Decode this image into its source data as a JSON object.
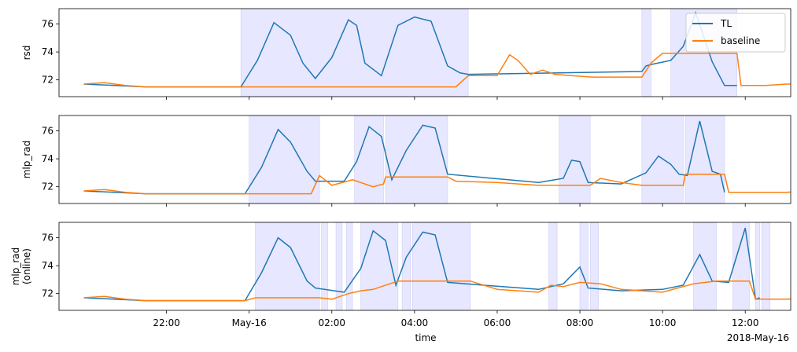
{
  "figure": {
    "xlabel": "time",
    "date_label": "2018-May-16",
    "x_ticks": [
      "22:00",
      "May-16",
      "02:00",
      "04:00",
      "06:00",
      "08:00",
      "10:00",
      "12:00"
    ]
  },
  "legend": {
    "entries": [
      {
        "label": "TL",
        "color": "#1f77b4"
      },
      {
        "label": "baseline",
        "color": "#ff7f0e"
      }
    ],
    "placement": "top-right"
  },
  "colors": {
    "tl": "#1f77b4",
    "baseline": "#ff7f0e",
    "span": "#e5e5ff"
  },
  "chart_data": [
    {
      "type": "line",
      "ylabel": [
        "rsd"
      ],
      "ylim": [
        70.8,
        77.1
      ],
      "yticks": [
        72,
        74,
        76
      ],
      "xlim_hours": [
        -2.6,
        15.1
      ],
      "spans": [
        [
          1.8,
          7.3
        ],
        [
          11.5,
          11.72
        ],
        [
          12.2,
          13.8
        ]
      ],
      "series": [
        {
          "name": "TL",
          "x": [
            -2.0,
            -0.5,
            1.8,
            2.2,
            2.6,
            3.0,
            3.3,
            3.6,
            4.0,
            4.4,
            4.6,
            4.8,
            5.2,
            5.6,
            6.0,
            6.4,
            6.8,
            7.1,
            7.3,
            11.5,
            11.6,
            11.72,
            12.2,
            12.5,
            12.8,
            13.2,
            13.5,
            13.8
          ],
          "y": [
            71.7,
            71.5,
            71.5,
            73.4,
            76.1,
            75.2,
            73.2,
            72.1,
            73.6,
            76.3,
            75.9,
            73.2,
            72.3,
            75.9,
            76.5,
            76.2,
            73.0,
            72.5,
            72.4,
            72.6,
            73.0,
            73.1,
            73.4,
            74.4,
            76.8,
            73.3,
            71.6,
            71.6
          ]
        },
        {
          "name": "baseline",
          "x": [
            -2.0,
            -1.5,
            -1.0,
            -0.5,
            0.0,
            1.0,
            2.0,
            3.0,
            4.0,
            5.0,
            6.0,
            7.0,
            7.3,
            7.6,
            8.0,
            8.3,
            8.5,
            8.8,
            9.1,
            9.4,
            9.8,
            10.3,
            11.0,
            11.5,
            11.72,
            12.0,
            12.2,
            13.8,
            13.9,
            14.5,
            15.0,
            16.0,
            17.0,
            18.0,
            19.0,
            20.0,
            21.0
          ],
          "y": [
            71.7,
            71.8,
            71.6,
            71.5,
            71.5,
            71.5,
            71.5,
            71.5,
            71.5,
            71.5,
            71.5,
            71.5,
            72.3,
            72.3,
            72.3,
            73.8,
            73.4,
            72.4,
            72.7,
            72.4,
            72.3,
            72.2,
            72.2,
            72.2,
            73.2,
            73.9,
            73.9,
            73.9,
            71.6,
            71.6,
            71.7,
            71.8,
            71.8,
            71.7,
            72.0,
            72.1,
            72.2
          ]
        }
      ]
    },
    {
      "type": "line",
      "ylabel": [
        "mlp_rad"
      ],
      "ylim": [
        70.8,
        77.1
      ],
      "yticks": [
        72,
        74,
        76
      ],
      "xlim_hours": [
        -2.6,
        15.1
      ],
      "spans": [
        [
          2.0,
          3.7
        ],
        [
          4.55,
          5.25
        ],
        [
          5.3,
          6.8
        ],
        [
          9.5,
          10.25
        ],
        [
          11.5,
          12.5
        ],
        [
          12.55,
          13.5
        ]
      ],
      "series": [
        {
          "name": "TL",
          "x": [
            -2.0,
            -0.5,
            1.9,
            2.3,
            2.7,
            3.0,
            3.4,
            3.6,
            4.3,
            4.6,
            4.9,
            5.2,
            5.45,
            5.8,
            6.2,
            6.5,
            6.8,
            9.0,
            9.6,
            9.8,
            10.0,
            10.2,
            11.0,
            11.6,
            11.9,
            12.2,
            12.4,
            12.6,
            12.9,
            13.2,
            13.4,
            13.5
          ],
          "y": [
            71.7,
            71.5,
            71.5,
            73.4,
            76.1,
            75.2,
            73.1,
            72.4,
            72.4,
            73.8,
            76.3,
            75.6,
            72.5,
            74.6,
            76.4,
            76.2,
            72.9,
            72.3,
            72.6,
            73.9,
            73.8,
            72.3,
            72.2,
            73.0,
            74.2,
            73.6,
            72.9,
            72.8,
            76.7,
            73.1,
            72.9,
            71.6
          ]
        },
        {
          "name": "baseline",
          "x": [
            -2.0,
            -1.5,
            -1.0,
            -0.5,
            0.5,
            1.8,
            2.0,
            3.0,
            3.5,
            3.7,
            4.0,
            4.5,
            5.0,
            5.25,
            5.3,
            6.0,
            6.8,
            7.0,
            8.0,
            9.0,
            9.5,
            10.25,
            10.5,
            11.0,
            11.5,
            12.5,
            12.55,
            13.5,
            13.6,
            15.0,
            16.0,
            17.0,
            18.0,
            19.0,
            20.0,
            21.0
          ],
          "y": [
            71.7,
            71.8,
            71.6,
            71.5,
            71.5,
            71.5,
            71.5,
            71.5,
            71.5,
            72.8,
            72.1,
            72.5,
            72.0,
            72.2,
            72.7,
            72.7,
            72.7,
            72.4,
            72.3,
            72.1,
            72.1,
            72.1,
            72.6,
            72.3,
            72.1,
            72.1,
            72.9,
            72.9,
            71.6,
            71.6,
            71.8,
            71.7,
            72.0,
            71.8,
            72.2,
            72.3
          ]
        }
      ]
    },
    {
      "type": "line",
      "ylabel": [
        "mlp_rad",
        "(online)"
      ],
      "ylim": [
        70.8,
        77.1
      ],
      "yticks": [
        72,
        74,
        76
      ],
      "xlim_hours": [
        -2.6,
        15.1
      ],
      "spans": [
        [
          2.15,
          3.7
        ],
        [
          3.75,
          3.9
        ],
        [
          4.1,
          4.25
        ],
        [
          4.35,
          4.5
        ],
        [
          4.7,
          5.6
        ],
        [
          5.7,
          5.9
        ],
        [
          5.95,
          7.35
        ],
        [
          9.25,
          9.45
        ],
        [
          10.0,
          10.2
        ],
        [
          10.25,
          10.45
        ],
        [
          12.75,
          13.3
        ],
        [
          13.7,
          14.1
        ],
        [
          14.25,
          14.35
        ],
        [
          14.4,
          14.6
        ]
      ],
      "series": [
        {
          "name": "TL",
          "x": [
            -2.0,
            -0.5,
            1.9,
            2.3,
            2.7,
            3.0,
            3.4,
            3.6,
            4.3,
            4.7,
            5.0,
            5.3,
            5.55,
            5.8,
            6.2,
            6.5,
            6.8,
            9.0,
            9.6,
            10.0,
            10.2,
            11.0,
            12.0,
            12.5,
            12.9,
            13.2,
            13.6,
            14.0,
            14.25,
            14.35
          ],
          "y": [
            71.7,
            71.5,
            71.5,
            73.5,
            76.0,
            75.3,
            72.9,
            72.4,
            72.1,
            73.8,
            76.5,
            75.8,
            72.6,
            74.6,
            76.4,
            76.2,
            72.8,
            72.3,
            72.7,
            73.9,
            72.4,
            72.2,
            72.3,
            72.6,
            74.8,
            72.9,
            72.8,
            76.7,
            71.6,
            71.7
          ]
        },
        {
          "name": "baseline",
          "x": [
            -2.0,
            -1.5,
            -1.0,
            -0.5,
            0.5,
            1.9,
            2.15,
            3.0,
            3.7,
            4.0,
            4.4,
            4.7,
            5.0,
            5.6,
            6.0,
            6.5,
            7.35,
            8.0,
            9.0,
            9.3,
            9.6,
            10.0,
            10.5,
            11.0,
            11.5,
            12.0,
            12.75,
            13.3,
            13.7,
            14.1,
            14.25,
            15.0,
            16.0,
            17.0,
            18.0,
            19.0,
            20.0,
            21.0
          ],
          "y": [
            71.7,
            71.8,
            71.6,
            71.5,
            71.5,
            71.5,
            71.7,
            71.7,
            71.7,
            71.6,
            72.0,
            72.2,
            72.3,
            72.9,
            72.9,
            72.9,
            72.9,
            72.3,
            72.1,
            72.6,
            72.5,
            72.8,
            72.7,
            72.3,
            72.2,
            72.1,
            72.7,
            72.9,
            72.9,
            72.9,
            71.6,
            71.6,
            71.8,
            71.7,
            72.0,
            71.8,
            72.2,
            72.3
          ]
        }
      ]
    }
  ]
}
